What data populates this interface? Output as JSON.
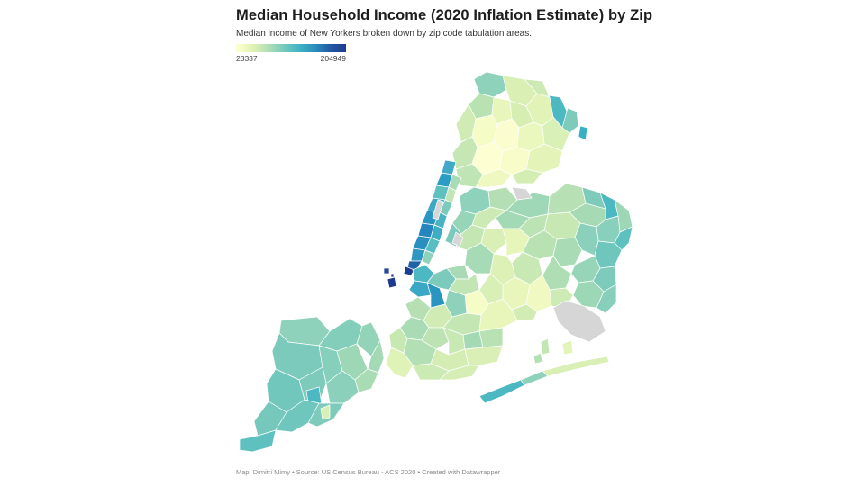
{
  "header": {
    "title": "Median Household Income (2020 Inflation Estimate) by Zip",
    "subtitle": "Median income of New Yorkers broken down by zip code tabulation areas."
  },
  "legend": {
    "min_label": "23337",
    "max_label": "204949",
    "colors": [
      "#ffffd2",
      "#e3f4b5",
      "#b3e0b5",
      "#79cbbb",
      "#42b4c4",
      "#2a8fbe",
      "#2459a2",
      "#1d3c8f"
    ],
    "no_data_color": "#d6d6d6"
  },
  "footer": {
    "credits": "Map: Dimitri Mimy • Source: US Census Bureau - ACS 2020 • Created with Datawrapper"
  }
}
